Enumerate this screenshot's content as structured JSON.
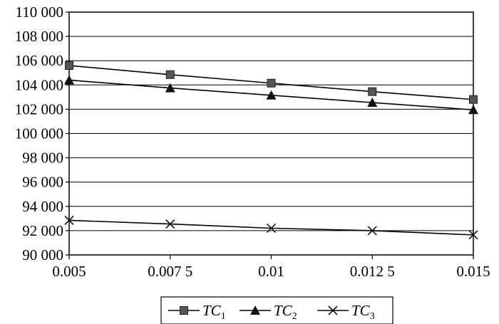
{
  "chart_data": {
    "type": "line",
    "x": [
      0.005,
      0.0075,
      0.01,
      0.0125,
      0.015
    ],
    "x_tick_labels": [
      "0.005",
      "0.007 5",
      "0.01",
      "0.012 5",
      "0.015"
    ],
    "ylim": [
      90000,
      110000
    ],
    "y_ticks": [
      90000,
      92000,
      94000,
      96000,
      98000,
      100000,
      102000,
      104000,
      106000,
      108000,
      110000
    ],
    "y_tick_labels": [
      "90 000",
      "92 000",
      "94 000",
      "96 000",
      "98 000",
      "100 000",
      "102 000",
      "104 000",
      "106 000",
      "108 000",
      "110 000"
    ],
    "grid": "horizontal",
    "legend_position": "bottom",
    "series": [
      {
        "name": "TC1",
        "label_main": "TC",
        "label_sub": "1",
        "marker": "square",
        "color": "#555555",
        "values": [
          105600,
          104850,
          104150,
          103450,
          102800
        ]
      },
      {
        "name": "TC2",
        "label_main": "TC",
        "label_sub": "2",
        "marker": "triangle",
        "color": "#111111",
        "values": [
          104400,
          103750,
          103150,
          102550,
          101950
        ]
      },
      {
        "name": "TC3",
        "label_main": "TC",
        "label_sub": "3",
        "marker": "x",
        "color": "#111111",
        "values": [
          92850,
          92550,
          92200,
          92000,
          91650
        ]
      }
    ]
  }
}
